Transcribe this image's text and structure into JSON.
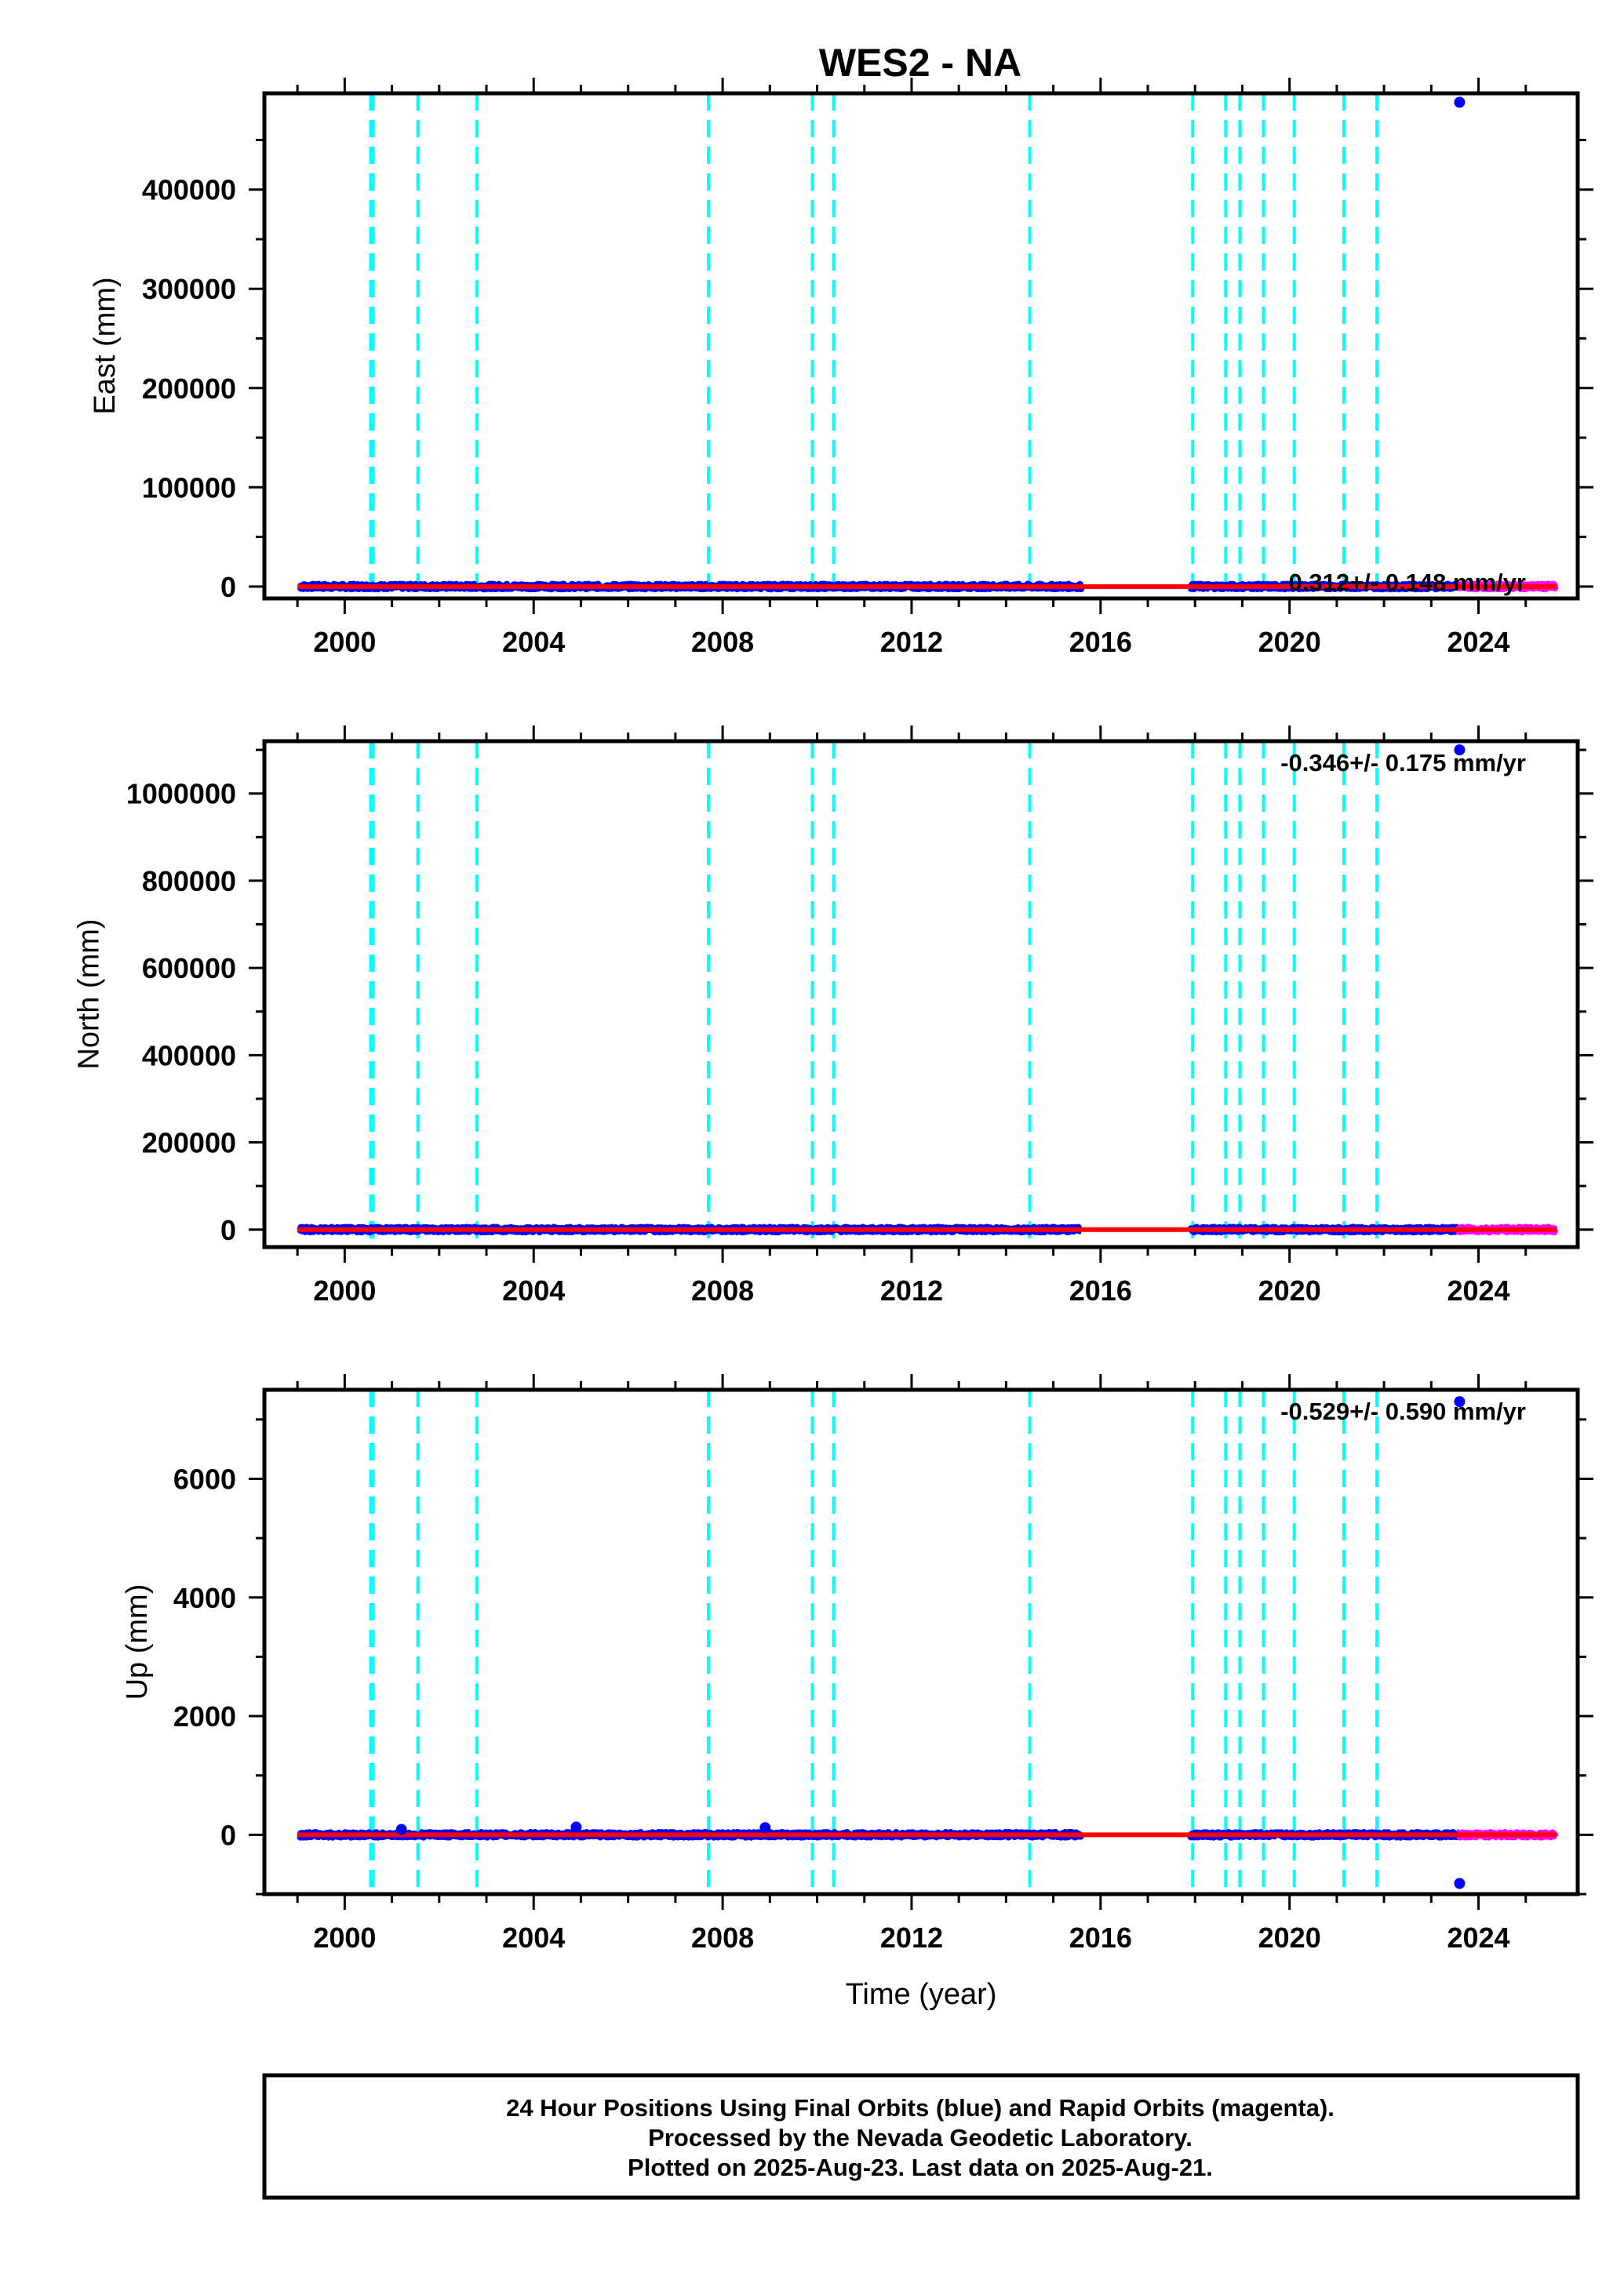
{
  "title": "WES2 - NA",
  "colors": {
    "final_orbits": "#0000ff",
    "rapid_orbits": "#ff00ff",
    "model": "#ff0000",
    "equipment_change": "#00ffff",
    "frame": "#000000"
  },
  "chart_data": [
    {
      "type": "scatter",
      "name": "east",
      "ylabel": "East (mm)",
      "xlabel": "",
      "xlim": [
        1998.3,
        2026.1
      ],
      "ylim": [
        -12000,
        497000
      ],
      "xticks": [
        "2000",
        "2004",
        "2008",
        "2012",
        "2016",
        "2020",
        "2024"
      ],
      "yticks": [
        "0",
        "100000",
        "200000",
        "300000",
        "400000"
      ],
      "rate_text": "0.312+/- 0.148 mm/yr",
      "rate_position": "bottom-right",
      "outliers": [
        {
          "x": 2023.6,
          "y": 488000
        }
      ],
      "series": [
        {
          "name": "final",
          "segments": [
            [
              1999.05,
              2015.6
            ],
            [
              2017.9,
              2023.55
            ]
          ],
          "y": 0
        },
        {
          "name": "rapid",
          "segments": [
            [
              2023.55,
              2025.63
            ]
          ],
          "y": 0
        },
        {
          "name": "model",
          "x": [
            1999.0,
            2025.65
          ],
          "y": [
            0,
            0
          ]
        }
      ]
    },
    {
      "type": "scatter",
      "name": "north",
      "ylabel": "North (mm)",
      "xlabel": "",
      "xlim": [
        1998.3,
        2026.1
      ],
      "ylim": [
        -40000,
        1120000
      ],
      "xticks": [
        "2000",
        "2004",
        "2008",
        "2012",
        "2016",
        "2020",
        "2024"
      ],
      "yticks": [
        "0",
        "200000",
        "400000",
        "600000",
        "800000",
        "1000000"
      ],
      "rate_text": "-0.346+/- 0.175 mm/yr",
      "rate_position": "top-right",
      "outliers": [
        {
          "x": 2023.6,
          "y": 1100000
        }
      ],
      "series": [
        {
          "name": "final",
          "segments": [
            [
              1999.05,
              2015.6
            ],
            [
              2017.9,
              2023.55
            ]
          ],
          "y": 0
        },
        {
          "name": "rapid",
          "segments": [
            [
              2023.55,
              2025.63
            ]
          ],
          "y": 0
        },
        {
          "name": "model",
          "x": [
            1999.0,
            2025.65
          ],
          "y": [
            0,
            0
          ]
        }
      ]
    },
    {
      "type": "scatter",
      "name": "up",
      "ylabel": "Up (mm)",
      "xlabel": "Time (year)",
      "xlim": [
        1998.3,
        2026.1
      ],
      "ylim": [
        -1000,
        7500
      ],
      "xticks": [
        "2000",
        "2004",
        "2008",
        "2012",
        "2016",
        "2020",
        "2024"
      ],
      "yticks": [
        "0",
        "2000",
        "4000",
        "6000"
      ],
      "rate_text": "-0.529+/- 0.590 mm/yr",
      "rate_position": "top-right",
      "outliers": [
        {
          "x": 2023.6,
          "y": 7300
        },
        {
          "x": 2023.6,
          "y": -820
        },
        {
          "x": 2004.9,
          "y": 130
        },
        {
          "x": 2008.9,
          "y": 120
        },
        {
          "x": 2001.2,
          "y": 90
        }
      ],
      "series": [
        {
          "name": "final",
          "segments": [
            [
              1999.05,
              2015.6
            ],
            [
              2017.9,
              2023.55
            ]
          ],
          "y": 0
        },
        {
          "name": "rapid",
          "segments": [
            [
              2023.55,
              2025.63
            ]
          ],
          "y": 0
        },
        {
          "name": "model",
          "x": [
            1999.0,
            2025.65
          ],
          "y": [
            0,
            0
          ]
        }
      ]
    }
  ],
  "equipment_changes": [
    2000.55,
    2000.6,
    2001.55,
    2002.8,
    2007.7,
    2009.9,
    2010.35,
    2014.5,
    2017.95,
    2018.65,
    2018.95,
    2019.45,
    2020.1,
    2021.15,
    2021.85
  ],
  "footer": {
    "line1": "24 Hour Positions Using Final Orbits (blue) and Rapid Orbits (magenta).",
    "line2": "Processed by the Nevada Geodetic Laboratory.",
    "line3": "Plotted on 2025-Aug-23. Last data on 2025-Aug-21."
  }
}
